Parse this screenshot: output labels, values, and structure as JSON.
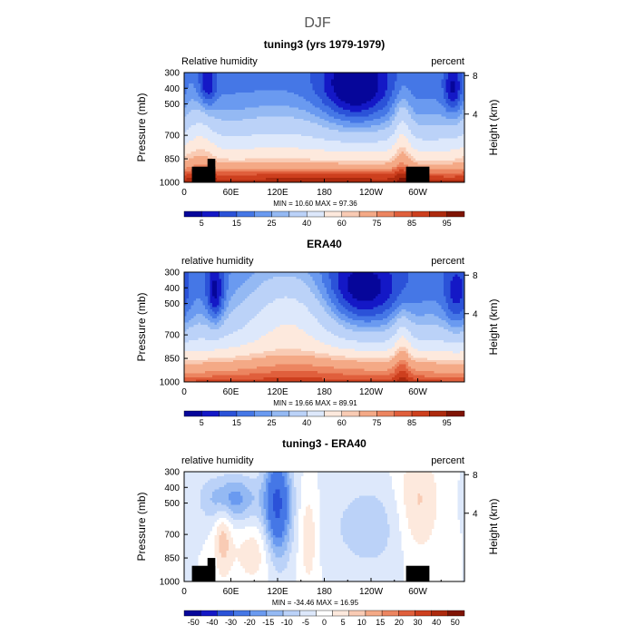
{
  "figure": {
    "title": "DJF"
  },
  "colormaps": {
    "rh": [
      "#06069a",
      "#1418c6",
      "#2b52d8",
      "#4577e6",
      "#6a9af0",
      "#94b9f3",
      "#bbd2f8",
      "#dde8fb",
      "#fde9dd",
      "#f9cbb4",
      "#f4a986",
      "#ec8560",
      "#e05f3c",
      "#cd3f1e",
      "#ad2a0e",
      "#7f1404"
    ],
    "diff": [
      "#06069a",
      "#1418c6",
      "#2b52d8",
      "#4577e6",
      "#6a9af0",
      "#94b9f3",
      "#bbd2f8",
      "#dde8fb",
      "#ffffff",
      "#fde9dd",
      "#f9cbb4",
      "#f4a986",
      "#ec8560",
      "#e05f3c",
      "#cd3f1e",
      "#ad2a0e",
      "#7f1404"
    ]
  },
  "chart_data": [
    {
      "type": "heatmap",
      "title": "tuning3 (yrs 1979-1979)",
      "left_label": "Relative humidity",
      "right_label": "percent",
      "ylabel": "Pressure (mb)",
      "ylabel_right": "Height (km)",
      "x_ticks": [
        "0",
        "60E",
        "120E",
        "180",
        "120W",
        "60W"
      ],
      "x_tick_values": [
        0,
        60,
        120,
        180,
        240,
        300
      ],
      "xlim": [
        0,
        360
      ],
      "y_ticks": [
        "300",
        "400",
        "500",
        "700",
        "850",
        "1000"
      ],
      "y_tick_values": [
        300,
        400,
        500,
        700,
        850,
        1000
      ],
      "ylim": [
        300,
        1000
      ],
      "height_ticks": [
        "8",
        "4"
      ],
      "height_tick_values": [
        8,
        4
      ],
      "stats": "MIN =   10.60   MAX =   97.36",
      "min": 10.6,
      "max": 97.36,
      "colorbar_labels": [
        "5",
        "15",
        "25",
        "40",
        "60",
        "75",
        "85",
        "95"
      ],
      "levels": [
        5,
        10,
        15,
        20,
        25,
        30,
        40,
        50,
        60,
        65,
        75,
        80,
        85,
        90,
        95
      ],
      "colormap": "rh",
      "topography": [
        [
          10,
          40,
          900
        ],
        [
          30,
          40,
          850
        ],
        [
          285,
          315,
          900
        ]
      ]
    },
    {
      "type": "heatmap",
      "title": "ERA40",
      "left_label": "relative humidity",
      "right_label": "percent",
      "ylabel": "Pressure (mb)",
      "ylabel_right": "Height (km)",
      "x_ticks": [
        "0",
        "60E",
        "120E",
        "180",
        "120W",
        "60W"
      ],
      "x_tick_values": [
        0,
        60,
        120,
        180,
        240,
        300
      ],
      "xlim": [
        0,
        360
      ],
      "y_ticks": [
        "300",
        "400",
        "500",
        "700",
        "850",
        "1000"
      ],
      "y_tick_values": [
        300,
        400,
        500,
        700,
        850,
        1000
      ],
      "ylim": [
        300,
        1000
      ],
      "height_ticks": [
        "8",
        "4"
      ],
      "height_tick_values": [
        8,
        4
      ],
      "stats": "MIN =   19.66   MAX =   89.91",
      "min": 19.66,
      "max": 89.91,
      "colorbar_labels": [
        "5",
        "15",
        "25",
        "40",
        "60",
        "75",
        "85",
        "95"
      ],
      "levels": [
        5,
        10,
        15,
        20,
        25,
        30,
        40,
        50,
        60,
        65,
        75,
        80,
        85,
        90,
        95
      ],
      "colormap": "rh",
      "topography": []
    },
    {
      "type": "heatmap",
      "title": "tuning3 - ERA40",
      "left_label": "relative humidity",
      "right_label": "percent",
      "ylabel": "Pressure (mb)",
      "ylabel_right": "Height (km)",
      "x_ticks": [
        "0",
        "60E",
        "120E",
        "180",
        "120W",
        "60W"
      ],
      "x_tick_values": [
        0,
        60,
        120,
        180,
        240,
        300
      ],
      "xlim": [
        0,
        360
      ],
      "y_ticks": [
        "300",
        "400",
        "500",
        "700",
        "850",
        "1000"
      ],
      "y_tick_values": [
        300,
        400,
        500,
        700,
        850,
        1000
      ],
      "ylim": [
        300,
        1000
      ],
      "height_ticks": [
        "8",
        "4"
      ],
      "height_tick_values": [
        8,
        4
      ],
      "stats": "MIN =  -34.46   MAX =   16.95",
      "min": -34.46,
      "max": 16.95,
      "colorbar_labels": [
        "-50",
        "-40",
        "-30",
        "-20",
        "-15",
        "-10",
        "-5",
        "0",
        "5",
        "10",
        "15",
        "20",
        "30",
        "40",
        "50"
      ],
      "levels": [
        -50,
        -40,
        -30,
        -20,
        -15,
        -10,
        -5,
        0,
        5,
        10,
        15,
        20,
        30,
        40,
        50
      ],
      "colormap": "diff",
      "topography": [
        [
          10,
          40,
          900
        ],
        [
          30,
          40,
          850
        ],
        [
          285,
          315,
          900
        ]
      ]
    }
  ]
}
